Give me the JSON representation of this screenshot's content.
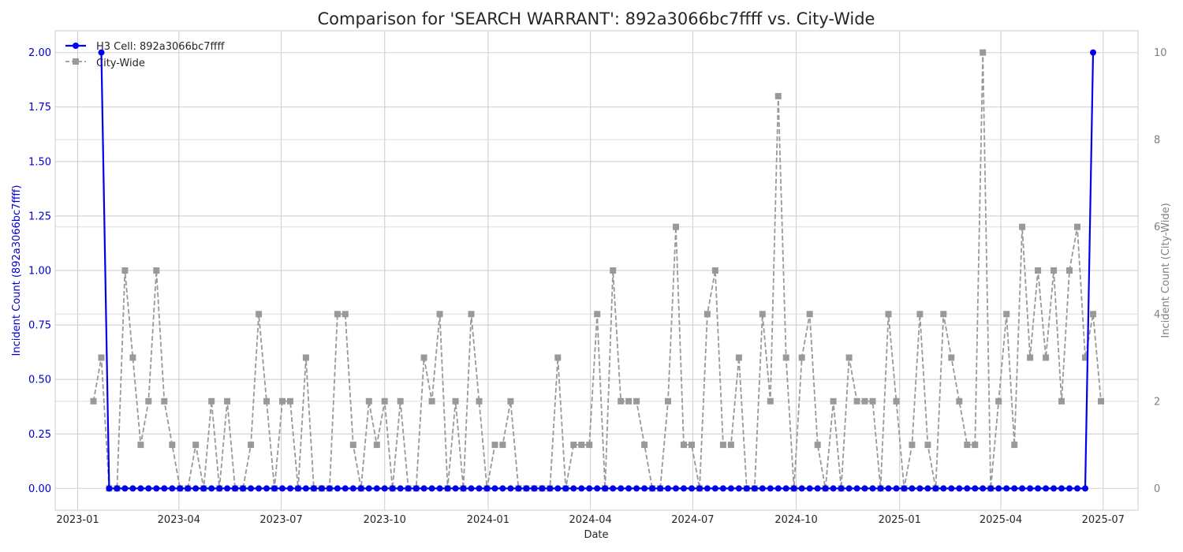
{
  "chart_data": {
    "type": "line",
    "title": "Comparison for 'SEARCH WARRANT': 892a3066bc7ffff vs. City-Wide",
    "xlabel": "Date",
    "ylabel_left": "Incident Count (892a3066bc7ffff)",
    "ylabel_right": "Incident Count (City-Wide)",
    "x_tick_labels": [
      "2023-01",
      "2023-04",
      "2023-07",
      "2023-10",
      "2024-01",
      "2024-04",
      "2024-07",
      "2024-10",
      "2025-01",
      "2025-04",
      "2025-07"
    ],
    "y_left_ticks": [
      "0.00",
      "0.25",
      "0.50",
      "0.75",
      "1.00",
      "1.25",
      "1.50",
      "1.75",
      "2.00"
    ],
    "y_right_ticks": [
      "0",
      "2",
      "4",
      "6",
      "8",
      "10"
    ],
    "y_left_range": [
      -0.1,
      2.1
    ],
    "y_right_range": [
      -0.5,
      10.5
    ],
    "x_range": [
      "2022-12-12",
      "2025-08-01"
    ],
    "grid": true,
    "legend_position": "top-left",
    "colors": {
      "cell": "#0000ee",
      "city": "#999999",
      "left_axis_text": "#0000cc",
      "right_axis_text": "#808080"
    },
    "series": [
      {
        "name": "H3 Cell: 892a3066bc7ffff",
        "axis": "left",
        "style": "solid-circle",
        "points": [
          [
            "2023-01-22",
            2
          ],
          [
            "2023-01-29",
            0
          ],
          [
            "2023-02-05",
            0
          ],
          [
            "2023-02-12",
            0
          ],
          [
            "2023-02-19",
            0
          ],
          [
            "2023-02-26",
            0
          ],
          [
            "2023-03-05",
            0
          ],
          [
            "2023-03-12",
            0
          ],
          [
            "2023-03-19",
            0
          ],
          [
            "2023-03-26",
            0
          ],
          [
            "2023-04-02",
            0
          ],
          [
            "2023-04-09",
            0
          ],
          [
            "2023-04-16",
            0
          ],
          [
            "2023-04-23",
            0
          ],
          [
            "2023-04-30",
            0
          ],
          [
            "2023-05-07",
            0
          ],
          [
            "2023-05-14",
            0
          ],
          [
            "2023-05-21",
            0
          ],
          [
            "2023-05-28",
            0
          ],
          [
            "2023-06-04",
            0
          ],
          [
            "2023-06-11",
            0
          ],
          [
            "2023-06-18",
            0
          ],
          [
            "2023-06-25",
            0
          ],
          [
            "2023-07-02",
            0
          ],
          [
            "2023-07-09",
            0
          ],
          [
            "2023-07-16",
            0
          ],
          [
            "2023-07-23",
            0
          ],
          [
            "2023-07-30",
            0
          ],
          [
            "2023-08-06",
            0
          ],
          [
            "2023-08-13",
            0
          ],
          [
            "2023-08-20",
            0
          ],
          [
            "2023-08-27",
            0
          ],
          [
            "2023-09-03",
            0
          ],
          [
            "2023-09-10",
            0
          ],
          [
            "2023-09-17",
            0
          ],
          [
            "2023-09-24",
            0
          ],
          [
            "2023-10-01",
            0
          ],
          [
            "2023-10-08",
            0
          ],
          [
            "2023-10-15",
            0
          ],
          [
            "2023-10-22",
            0
          ],
          [
            "2023-10-29",
            0
          ],
          [
            "2023-11-05",
            0
          ],
          [
            "2023-11-12",
            0
          ],
          [
            "2023-11-19",
            0
          ],
          [
            "2023-11-26",
            0
          ],
          [
            "2023-12-03",
            0
          ],
          [
            "2023-12-10",
            0
          ],
          [
            "2023-12-17",
            0
          ],
          [
            "2023-12-24",
            0
          ],
          [
            "2023-12-31",
            0
          ],
          [
            "2024-01-07",
            0
          ],
          [
            "2024-01-14",
            0
          ],
          [
            "2024-01-21",
            0
          ],
          [
            "2024-01-28",
            0
          ],
          [
            "2024-02-04",
            0
          ],
          [
            "2024-02-11",
            0
          ],
          [
            "2024-02-18",
            0
          ],
          [
            "2024-02-25",
            0
          ],
          [
            "2024-03-03",
            0
          ],
          [
            "2024-03-10",
            0
          ],
          [
            "2024-03-17",
            0
          ],
          [
            "2024-03-24",
            0
          ],
          [
            "2024-03-31",
            0
          ],
          [
            "2024-04-07",
            0
          ],
          [
            "2024-04-14",
            0
          ],
          [
            "2024-04-21",
            0
          ],
          [
            "2024-04-28",
            0
          ],
          [
            "2024-05-05",
            0
          ],
          [
            "2024-05-12",
            0
          ],
          [
            "2024-05-19",
            0
          ],
          [
            "2024-05-26",
            0
          ],
          [
            "2024-06-02",
            0
          ],
          [
            "2024-06-09",
            0
          ],
          [
            "2024-06-16",
            0
          ],
          [
            "2024-06-23",
            0
          ],
          [
            "2024-06-30",
            0
          ],
          [
            "2024-07-07",
            0
          ],
          [
            "2024-07-14",
            0
          ],
          [
            "2024-07-21",
            0
          ],
          [
            "2024-07-28",
            0
          ],
          [
            "2024-08-04",
            0
          ],
          [
            "2024-08-11",
            0
          ],
          [
            "2024-08-18",
            0
          ],
          [
            "2024-08-25",
            0
          ],
          [
            "2024-09-01",
            0
          ],
          [
            "2024-09-08",
            0
          ],
          [
            "2024-09-15",
            0
          ],
          [
            "2024-09-22",
            0
          ],
          [
            "2024-09-29",
            0
          ],
          [
            "2024-10-06",
            0
          ],
          [
            "2024-10-13",
            0
          ],
          [
            "2024-10-20",
            0
          ],
          [
            "2024-10-27",
            0
          ],
          [
            "2024-11-03",
            0
          ],
          [
            "2024-11-10",
            0
          ],
          [
            "2024-11-17",
            0
          ],
          [
            "2024-11-24",
            0
          ],
          [
            "2024-12-01",
            0
          ],
          [
            "2024-12-08",
            0
          ],
          [
            "2024-12-15",
            0
          ],
          [
            "2024-12-22",
            0
          ],
          [
            "2024-12-29",
            0
          ],
          [
            "2025-01-05",
            0
          ],
          [
            "2025-01-12",
            0
          ],
          [
            "2025-01-19",
            0
          ],
          [
            "2025-01-26",
            0
          ],
          [
            "2025-02-02",
            0
          ],
          [
            "2025-02-09",
            0
          ],
          [
            "2025-02-16",
            0
          ],
          [
            "2025-02-23",
            0
          ],
          [
            "2025-03-02",
            0
          ],
          [
            "2025-03-09",
            0
          ],
          [
            "2025-03-16",
            0
          ],
          [
            "2025-03-23",
            0
          ],
          [
            "2025-03-30",
            0
          ],
          [
            "2025-04-06",
            0
          ],
          [
            "2025-04-13",
            0
          ],
          [
            "2025-04-20",
            0
          ],
          [
            "2025-04-27",
            0
          ],
          [
            "2025-05-04",
            0
          ],
          [
            "2025-05-11",
            0
          ],
          [
            "2025-05-18",
            0
          ],
          [
            "2025-05-25",
            0
          ],
          [
            "2025-06-01",
            0
          ],
          [
            "2025-06-08",
            0
          ],
          [
            "2025-06-15",
            0
          ],
          [
            "2025-06-22",
            2
          ]
        ]
      },
      {
        "name": "City-Wide",
        "axis": "right",
        "style": "dashed-square",
        "points": [
          [
            "2023-01-15",
            2
          ],
          [
            "2023-01-22",
            3
          ],
          [
            "2023-01-29",
            0
          ],
          [
            "2023-02-05",
            0
          ],
          [
            "2023-02-12",
            5
          ],
          [
            "2023-02-19",
            3
          ],
          [
            "2023-02-26",
            1
          ],
          [
            "2023-03-05",
            2
          ],
          [
            "2023-03-12",
            5
          ],
          [
            "2023-03-19",
            2
          ],
          [
            "2023-03-26",
            1
          ],
          [
            "2023-04-02",
            0
          ],
          [
            "2023-04-09",
            0
          ],
          [
            "2023-04-16",
            1
          ],
          [
            "2023-04-23",
            0
          ],
          [
            "2023-04-30",
            2
          ],
          [
            "2023-05-07",
            0
          ],
          [
            "2023-05-14",
            2
          ],
          [
            "2023-05-21",
            0
          ],
          [
            "2023-05-28",
            0
          ],
          [
            "2023-06-04",
            1
          ],
          [
            "2023-06-11",
            4
          ],
          [
            "2023-06-18",
            2
          ],
          [
            "2023-06-25",
            0
          ],
          [
            "2023-07-02",
            2
          ],
          [
            "2023-07-09",
            2
          ],
          [
            "2023-07-16",
            0
          ],
          [
            "2023-07-23",
            3
          ],
          [
            "2023-07-30",
            0
          ],
          [
            "2023-08-06",
            0
          ],
          [
            "2023-08-13",
            0
          ],
          [
            "2023-08-20",
            4
          ],
          [
            "2023-08-27",
            4
          ],
          [
            "2023-09-03",
            1
          ],
          [
            "2023-09-10",
            0
          ],
          [
            "2023-09-17",
            2
          ],
          [
            "2023-09-24",
            1
          ],
          [
            "2023-10-01",
            2
          ],
          [
            "2023-10-08",
            0
          ],
          [
            "2023-10-15",
            2
          ],
          [
            "2023-10-22",
            0
          ],
          [
            "2023-10-29",
            0
          ],
          [
            "2023-11-05",
            3
          ],
          [
            "2023-11-12",
            2
          ],
          [
            "2023-11-19",
            4
          ],
          [
            "2023-11-26",
            0
          ],
          [
            "2023-12-03",
            2
          ],
          [
            "2023-12-10",
            0
          ],
          [
            "2023-12-17",
            4
          ],
          [
            "2023-12-24",
            2
          ],
          [
            "2023-12-31",
            0
          ],
          [
            "2024-01-07",
            1
          ],
          [
            "2024-01-14",
            1
          ],
          [
            "2024-01-21",
            2
          ],
          [
            "2024-01-28",
            0
          ],
          [
            "2024-02-04",
            0
          ],
          [
            "2024-02-11",
            0
          ],
          [
            "2024-02-18",
            0
          ],
          [
            "2024-02-25",
            0
          ],
          [
            "2024-03-03",
            3
          ],
          [
            "2024-03-10",
            0
          ],
          [
            "2024-03-17",
            1
          ],
          [
            "2024-03-24",
            1
          ],
          [
            "2024-03-31",
            1
          ],
          [
            "2024-04-07",
            4
          ],
          [
            "2024-04-14",
            0
          ],
          [
            "2024-04-21",
            5
          ],
          [
            "2024-04-28",
            2
          ],
          [
            "2024-05-05",
            2
          ],
          [
            "2024-05-12",
            2
          ],
          [
            "2024-05-19",
            1
          ],
          [
            "2024-05-26",
            0
          ],
          [
            "2024-06-02",
            0
          ],
          [
            "2024-06-09",
            2
          ],
          [
            "2024-06-16",
            6
          ],
          [
            "2024-06-23",
            1
          ],
          [
            "2024-06-30",
            1
          ],
          [
            "2024-07-07",
            0
          ],
          [
            "2024-07-14",
            4
          ],
          [
            "2024-07-21",
            5
          ],
          [
            "2024-07-28",
            1
          ],
          [
            "2024-08-04",
            1
          ],
          [
            "2024-08-11",
            3
          ],
          [
            "2024-08-18",
            0
          ],
          [
            "2024-08-25",
            0
          ],
          [
            "2024-09-01",
            4
          ],
          [
            "2024-09-08",
            2
          ],
          [
            "2024-09-15",
            9
          ],
          [
            "2024-09-22",
            3
          ],
          [
            "2024-09-29",
            0
          ],
          [
            "2024-10-06",
            3
          ],
          [
            "2024-10-13",
            4
          ],
          [
            "2024-10-20",
            1
          ],
          [
            "2024-10-27",
            0
          ],
          [
            "2024-11-03",
            2
          ],
          [
            "2024-11-10",
            0
          ],
          [
            "2024-11-17",
            3
          ],
          [
            "2024-11-24",
            2
          ],
          [
            "2024-12-01",
            2
          ],
          [
            "2024-12-08",
            2
          ],
          [
            "2024-12-15",
            0
          ],
          [
            "2024-12-22",
            4
          ],
          [
            "2024-12-29",
            2
          ],
          [
            "2025-01-05",
            0
          ],
          [
            "2025-01-12",
            1
          ],
          [
            "2025-01-19",
            4
          ],
          [
            "2025-01-26",
            1
          ],
          [
            "2025-02-02",
            0
          ],
          [
            "2025-02-09",
            4
          ],
          [
            "2025-02-16",
            3
          ],
          [
            "2025-02-23",
            2
          ],
          [
            "2025-03-02",
            1
          ],
          [
            "2025-03-09",
            1
          ],
          [
            "2025-03-16",
            10
          ],
          [
            "2025-03-23",
            0
          ],
          [
            "2025-03-30",
            2
          ],
          [
            "2025-04-06",
            4
          ],
          [
            "2025-04-13",
            1
          ],
          [
            "2025-04-20",
            6
          ],
          [
            "2025-04-27",
            3
          ],
          [
            "2025-05-04",
            5
          ],
          [
            "2025-05-11",
            3
          ],
          [
            "2025-05-18",
            5
          ],
          [
            "2025-05-25",
            2
          ],
          [
            "2025-06-01",
            5
          ],
          [
            "2025-06-08",
            6
          ],
          [
            "2025-06-15",
            3
          ],
          [
            "2025-06-22",
            4
          ],
          [
            "2025-06-29",
            2
          ]
        ]
      }
    ]
  }
}
